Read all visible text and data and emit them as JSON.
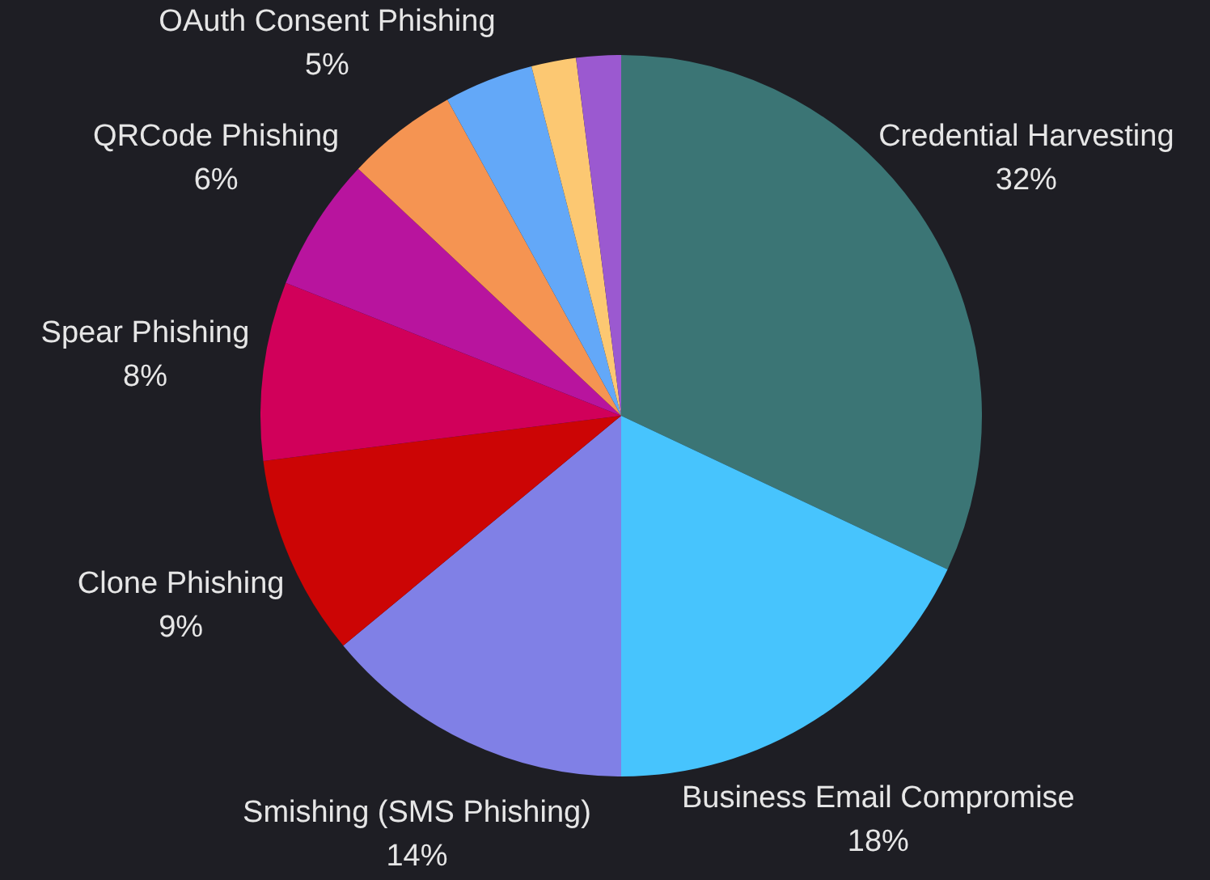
{
  "chart_data": {
    "type": "pie",
    "categories": [
      "Credential Harvesting",
      "Business Email Compromise",
      "Smishing (SMS Phishing)",
      "Clone Phishing",
      "Spear Phishing",
      "QRCode Phishing",
      "OAuth Consent Phishing",
      null,
      null,
      null
    ],
    "values": [
      32,
      18,
      14,
      9,
      8,
      6,
      5,
      4,
      2,
      2
    ],
    "value_labels": [
      "32%",
      "18%",
      "14%",
      "9%",
      "8%",
      "6%",
      "5%",
      null,
      null,
      null
    ],
    "colors": [
      "#3b7575",
      "#47c4fd",
      "#8080e6",
      "#cc0505",
      "#d1005a",
      "#b8149e",
      "#f59452",
      "#63a8f8",
      "#fcc872",
      "#9b59d0"
    ],
    "legend": false
  }
}
